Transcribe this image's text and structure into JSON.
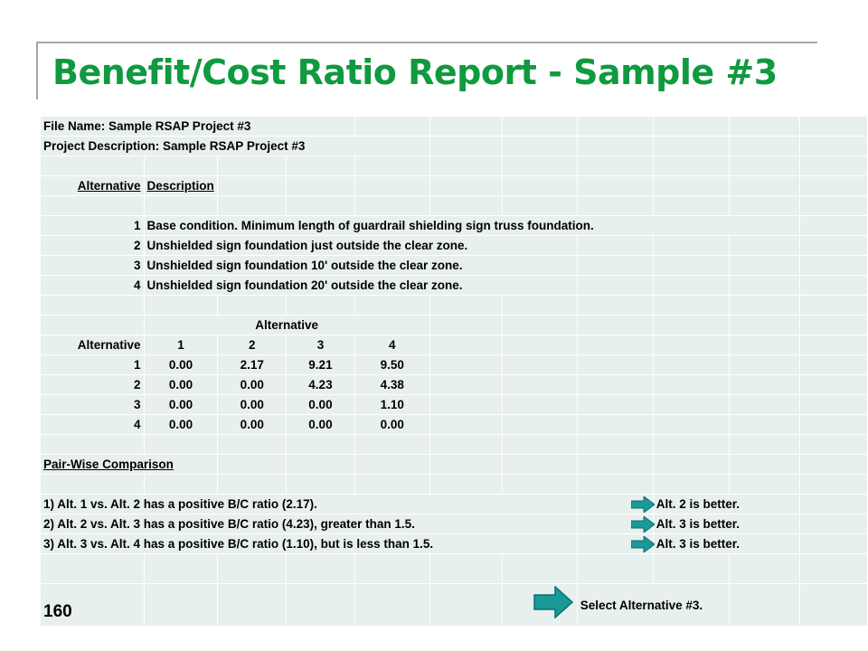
{
  "title": "Benefit/Cost Ratio Report - Sample #3",
  "file_name": "File Name: Sample RSAP Project #3",
  "project_description": "Project Description: Sample RSAP Project #3",
  "alternatives_table": {
    "header_alternative": "Alternative",
    "header_description": "Description",
    "rows": [
      {
        "num": "1",
        "desc": "Base condition.  Minimum length of guardrail shielding sign truss foundation."
      },
      {
        "num": "2",
        "desc": "Unshielded sign foundation just outside the clear zone."
      },
      {
        "num": "3",
        "desc": "Unshielded sign foundation 10' outside the clear zone."
      },
      {
        "num": "4",
        "desc": "Unshielded sign foundation 20' outside the clear zone."
      }
    ]
  },
  "bc_matrix": {
    "column_group_label": "Alternative",
    "row_header": "Alternative",
    "columns": [
      "1",
      "2",
      "3",
      "4"
    ],
    "rows": [
      {
        "alt": "1",
        "values": [
          "0.00",
          "2.17",
          "9.21",
          "9.50"
        ]
      },
      {
        "alt": "2",
        "values": [
          "0.00",
          "0.00",
          "4.23",
          "4.38"
        ]
      },
      {
        "alt": "3",
        "values": [
          "0.00",
          "0.00",
          "0.00",
          "1.10"
        ]
      },
      {
        "alt": "4",
        "values": [
          "0.00",
          "0.00",
          "0.00",
          "0.00"
        ]
      }
    ]
  },
  "pairwise": {
    "heading": "Pair-Wise Comparison",
    "items": [
      {
        "text": "1) Alt. 1 vs. Alt. 2 has a positive B/C ratio (2.17).",
        "result": "Alt.  2 is better."
      },
      {
        "text": "2) Alt. 2 vs. Alt. 3 has a positive B/C ratio (4.23), greater than 1.5.",
        "result": "Alt.  3 is better."
      },
      {
        "text": "3) Alt. 3 vs. Alt. 4 has a positive B/C ratio (1.10), but is less than 1.5.",
        "result": "Alt.  3 is better."
      }
    ]
  },
  "selection": "Select  Alternative #3.",
  "slide_number": "160",
  "colors": {
    "title": "#0f9a3f",
    "cell_bg": "#e8efef",
    "arrow": "#1a9a96"
  },
  "icons": {
    "result_arrow": "right-arrow-icon"
  }
}
